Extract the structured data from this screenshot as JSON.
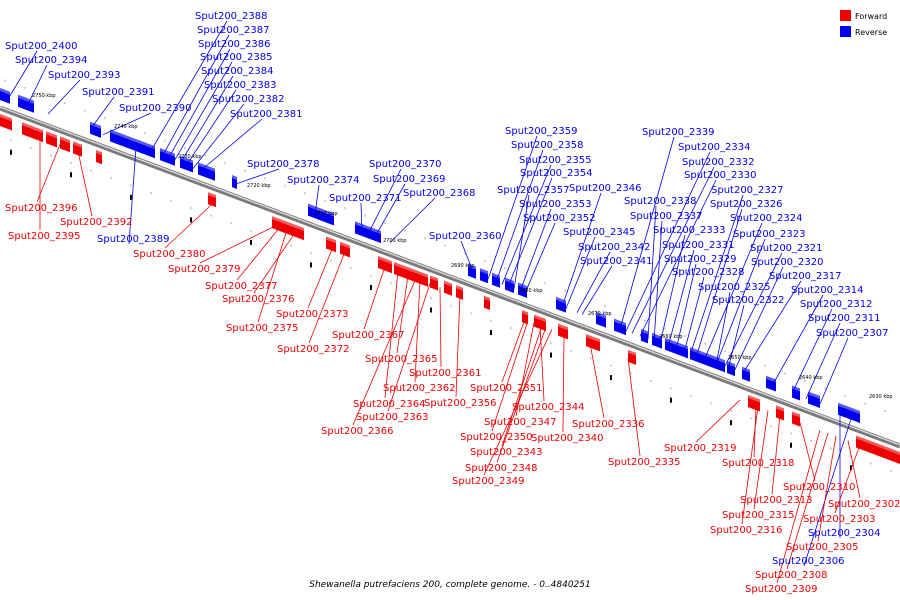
{
  "caption": "Shewanella putrefaciens 200, complete genome. - 0..4840251",
  "legend": [
    {
      "name": "Forward",
      "color": "#ee0000"
    },
    {
      "name": "Reverse",
      "color": "#0000ee"
    }
  ],
  "colors": {
    "forward": "#ee0000",
    "reverse": "#0000ee",
    "backbone": "#888888"
  },
  "ticks": [
    "2750 kbp",
    "2740 kbp",
    "2730 kbp",
    "2720 kbp",
    "2710 kbp",
    "2700 kbp",
    "2690 kbp",
    "2680 kbp",
    "2670 kbp",
    "2660 kbp",
    "2650 kbp",
    "2640 kbp",
    "2630 kbp"
  ],
  "reverse_labels": [
    "Sput200_2400",
    "Sput200_2394",
    "Sput200_2393",
    "Sput200_2391",
    "Sput200_2390",
    "Sput200_2388",
    "Sput200_2387",
    "Sput200_2386",
    "Sput200_2385",
    "Sput200_2384",
    "Sput200_2383",
    "Sput200_2382",
    "Sput200_2381",
    "Sput200_2378",
    "Sput200_2374",
    "Sput200_2371",
    "Sput200_2370",
    "Sput200_2369",
    "Sput200_2368",
    "Sput200_2360",
    "Sput200_2359",
    "Sput200_2358",
    "Sput200_2355",
    "Sput200_2354",
    "Sput200_2357",
    "Sput200_2353",
    "Sput200_2352",
    "Sput200_2346",
    "Sput200_2345",
    "Sput200_2342",
    "Sput200_2341",
    "Sput200_2339",
    "Sput200_2334",
    "Sput200_2332",
    "Sput200_2330",
    "Sput200_2338",
    "Sput200_2337",
    "Sput200_2333",
    "Sput200_2331",
    "Sput200_2329",
    "Sput200_2328",
    "Sput200_2327",
    "Sput200_2326",
    "Sput200_2324",
    "Sput200_2323",
    "Sput200_2321",
    "Sput200_2320",
    "Sput200_2317",
    "Sput200_2325",
    "Sput200_2322",
    "Sput200_2314",
    "Sput200_2312",
    "Sput200_2311",
    "Sput200_2307",
    "Sput200_2389",
    "Sput200_2304",
    "Sput200_2306"
  ],
  "forward_labels": [
    "Sput200_2396",
    "Sput200_2392",
    "Sput200_2395",
    "Sput200_2380",
    "Sput200_2379",
    "Sput200_2377",
    "Sput200_2376",
    "Sput200_2373",
    "Sput200_2375",
    "Sput200_2372",
    "Sput200_2367",
    "Sput200_2365",
    "Sput200_2361",
    "Sput200_2362",
    "Sput200_2364",
    "Sput200_2356",
    "Sput200_2363",
    "Sput200_2366",
    "Sput200_2351",
    "Sput200_2344",
    "Sput200_2347",
    "Sput200_2350",
    "Sput200_2340",
    "Sput200_2343",
    "Sput200_2348",
    "Sput200_2349",
    "Sput200_2336",
    "Sput200_2335",
    "Sput200_2319",
    "Sput200_2318",
    "Sput200_2310",
    "Sput200_2313",
    "Sput200_2315",
    "Sput200_2316",
    "Sput200_2302",
    "Sput200_2303",
    "Sput200_2305",
    "Sput200_2308",
    "Sput200_2309"
  ]
}
